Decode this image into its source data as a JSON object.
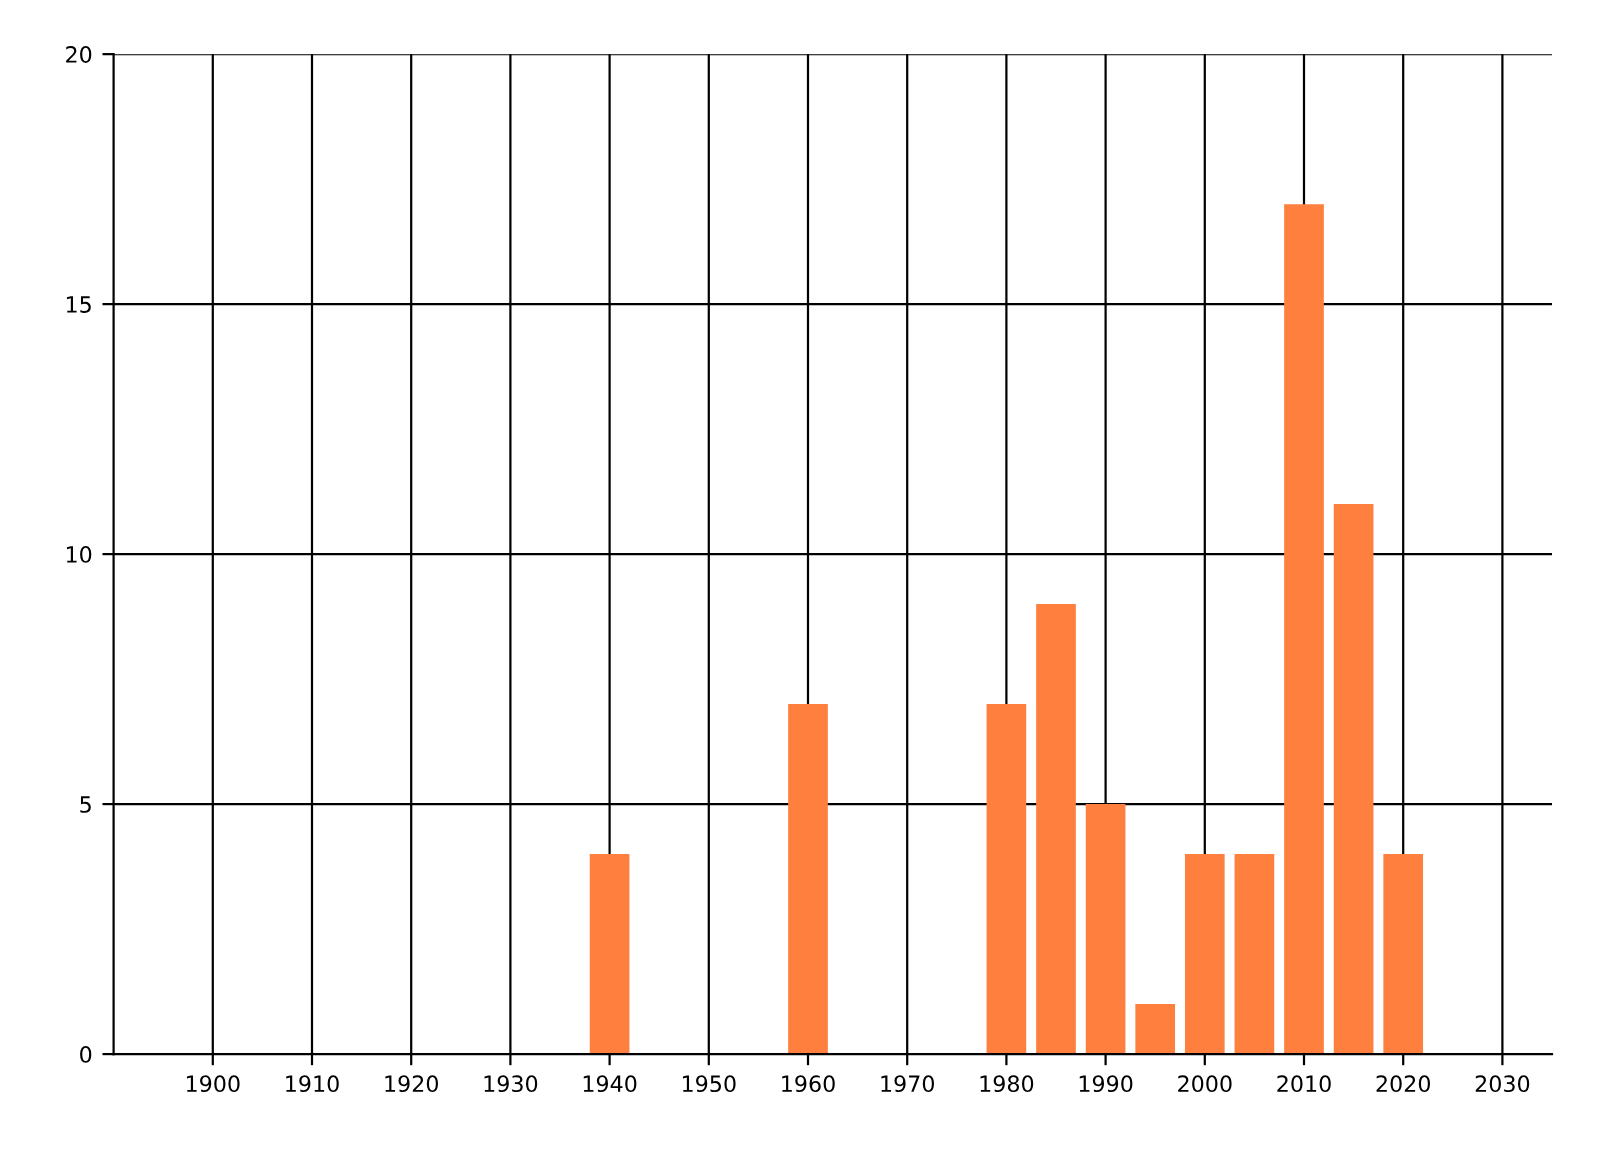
{
  "chart_data": {
    "type": "bar",
    "x": [
      1940,
      1960,
      1980,
      1985,
      1990,
      1995,
      2000,
      2005,
      2010,
      2015,
      2020
    ],
    "values": [
      4,
      7,
      7,
      9,
      5,
      1,
      4,
      4,
      17,
      11,
      4
    ],
    "color": "#ff7f3f",
    "xlim": [
      1890,
      2035
    ],
    "xticks": [
      1900,
      1910,
      1920,
      1930,
      1940,
      1950,
      1960,
      1970,
      1980,
      1990,
      2000,
      2010,
      2020,
      2030
    ],
    "ylim": [
      0,
      20
    ],
    "yticks": [
      0,
      5,
      10,
      15,
      20
    ],
    "grid": true
  }
}
